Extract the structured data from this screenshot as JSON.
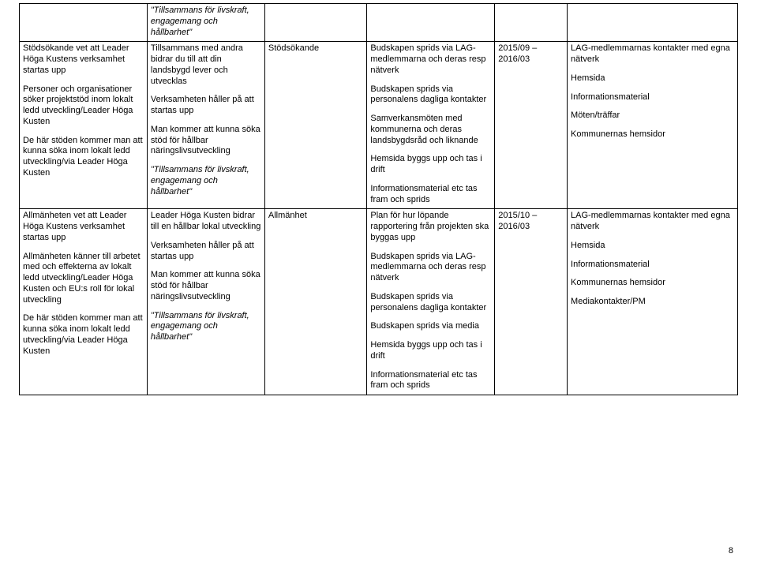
{
  "page_number": "8",
  "table": {
    "rows": [
      {
        "c1": [],
        "c2": [
          {
            "text": "\"Tillsammans för livskraft, engagemang och hållbarhet\"",
            "italic": true
          }
        ],
        "c3": [],
        "c4": [],
        "c5": [],
        "c6": []
      },
      {
        "c1": [
          {
            "text": "Stödsökande vet att Leader Höga Kustens verksamhet startas upp"
          },
          {
            "text": "Personer och organisationer söker projektstöd inom lokalt ledd utveckling/Leader Höga Kusten"
          },
          {
            "text": "De här stöden kommer man att kunna söka inom lokalt ledd utveckling/via Leader Höga Kusten"
          }
        ],
        "c2": [
          {
            "text": "Tillsammans med andra bidrar du till att din landsbygd lever och utvecklas"
          },
          {
            "text": "Verksamheten håller på att startas upp"
          },
          {
            "text": "Man kommer att kunna söka stöd för hållbar näringslivsutveckling"
          },
          {
            "text": "\"Tillsammans för livskraft, engagemang och hållbarhet\"",
            "italic": true
          }
        ],
        "c3": [
          {
            "text": "Stödsökande"
          }
        ],
        "c4": [
          {
            "text": "Budskapen sprids via LAG-medlemmarna och deras resp nätverk"
          },
          {
            "text": "Budskapen sprids via personalens dagliga kontakter"
          },
          {
            "text": "Samverkansmöten med kommunerna och deras landsbygdsråd och liknande"
          },
          {
            "text": "Hemsida byggs upp och tas i drift"
          },
          {
            "text": "Informationsmaterial etc tas fram och sprids"
          }
        ],
        "c5": [
          {
            "text": "2015/09 – 2016/03"
          }
        ],
        "c6": [
          {
            "text": "LAG-medlemmarnas kontakter med egna nätverk"
          },
          {
            "text": "Hemsida"
          },
          {
            "text": "Informationsmaterial"
          },
          {
            "text": "Möten/träffar"
          },
          {
            "text": "Kommunernas hemsidor"
          }
        ]
      },
      {
        "c1": [
          {
            "text": "Allmänheten vet att Leader Höga Kustens verksamhet startas upp"
          },
          {
            "text": "Allmänheten känner till arbetet med och effekterna av lokalt ledd utveckling/Leader Höga Kusten och EU:s roll för lokal utveckling"
          },
          {
            "text": "De här stöden kommer man att kunna söka inom lokalt ledd utveckling/via Leader Höga Kusten"
          }
        ],
        "c2": [
          {
            "text": "Leader Höga Kusten bidrar till en hållbar lokal utveckling"
          },
          {
            "text": "Verksamheten håller på att startas upp"
          },
          {
            "text": "Man kommer att kunna söka stöd för hållbar näringslivsutveckling"
          },
          {
            "text": "\"Tillsammans för livskraft, engagemang och hållbarhet\"",
            "italic": true
          }
        ],
        "c3": [
          {
            "text": "Allmänhet"
          }
        ],
        "c4": [
          {
            "text": "Plan för hur löpande rapportering från projekten ska byggas upp"
          },
          {
            "text": "Budskapen sprids via LAG-medlemmarna och deras resp nätverk"
          },
          {
            "text": "Budskapen sprids via personalens dagliga kontakter"
          },
          {
            "text": "Budskapen sprids via media"
          },
          {
            "text": "Hemsida byggs upp och tas i drift"
          },
          {
            "text": "Informationsmaterial etc tas fram och sprids"
          }
        ],
        "c5": [
          {
            "text": "2015/10 – 2016/03"
          }
        ],
        "c6": [
          {
            "text": "LAG-medlemmarnas kontakter med egna nätverk"
          },
          {
            "text": "Hemsida"
          },
          {
            "text": "Informationsmaterial"
          },
          {
            "text": "Kommunernas hemsidor"
          },
          {
            "text": "Mediakontakter/PM"
          }
        ]
      }
    ]
  }
}
